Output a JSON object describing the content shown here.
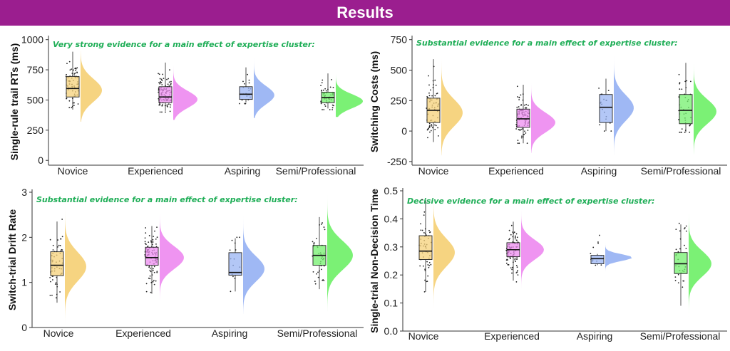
{
  "banner": {
    "title": "Results"
  },
  "colors": {
    "banner": "#9b1e8f",
    "evidence_text": "#1fae57",
    "novice": "#f5d27a",
    "experienced": "#ee8ef0",
    "aspiring": "#9ab4f3",
    "professional": "#74f06e"
  },
  "chart_data": [
    {
      "type": "raincloud",
      "annotation": "Very strong evidence for a main effect of expertise cluster:",
      "ylabel": "Single-rule trail RTs (ms)",
      "xlabel": "",
      "categories": [
        "Novice",
        "Experienced",
        "Aspiring",
        "Semi/Professional"
      ],
      "ylim": [
        -40,
        1010
      ],
      "yticks": [
        0,
        250,
        500,
        750,
        1000
      ],
      "ytick_labels": [
        "0",
        "250",
        "500",
        "750",
        "1000"
      ],
      "grid": false,
      "boxes": [
        {
          "min": 420,
          "q1": 525,
          "median": 595,
          "q3": 695,
          "max": 900
        },
        {
          "min": 410,
          "q1": 478,
          "median": 525,
          "q3": 610,
          "max": 810
        },
        {
          "min": 480,
          "q1": 505,
          "median": 548,
          "q3": 610,
          "max": 770
        },
        {
          "min": 430,
          "q1": 478,
          "median": 520,
          "q3": 565,
          "max": 720
        }
      ],
      "densities": [
        {
          "mode": 580,
          "sd": 95,
          "peak_width": 0.75,
          "range": [
            320,
            910
          ]
        },
        {
          "mode": 505,
          "sd": 70,
          "peak_width": 0.85,
          "range": [
            335,
            810
          ]
        },
        {
          "mode": 540,
          "sd": 75,
          "peak_width": 0.72,
          "range": [
            350,
            890
          ]
        },
        {
          "mode": 490,
          "sd": 58,
          "peak_width": 0.95,
          "range": [
            360,
            720
          ]
        }
      ],
      "points": [
        {
          "n": 70,
          "mean": 610,
          "sd": 105,
          "range": [
            400,
            910
          ]
        },
        {
          "n": 110,
          "mean": 545,
          "sd": 85,
          "range": [
            400,
            820
          ]
        },
        {
          "n": 22,
          "mean": 570,
          "sd": 75,
          "range": [
            470,
            780
          ]
        },
        {
          "n": 45,
          "mean": 525,
          "sd": 65,
          "range": [
            420,
            740
          ]
        }
      ]
    },
    {
      "type": "raincloud",
      "annotation": "Substantial evidence for a main effect of expertise cluster:",
      "ylabel": "Switching Costs (ms)",
      "xlabel": "",
      "categories": [
        "Novice",
        "Experienced",
        "Aspiring",
        "Semi/Professional"
      ],
      "ylim": [
        -280,
        760
      ],
      "yticks": [
        -250,
        0,
        250,
        500,
        750
      ],
      "ytick_labels": [
        "-250",
        "0",
        "250",
        "500",
        "750"
      ],
      "grid": false,
      "boxes": [
        {
          "min": -90,
          "q1": 70,
          "median": 170,
          "q3": 270,
          "max": 590
        },
        {
          "min": -100,
          "q1": 30,
          "median": 100,
          "q3": 180,
          "max": 380
        },
        {
          "min": 0,
          "q1": 70,
          "median": 195,
          "q3": 300,
          "max": 430
        },
        {
          "min": -10,
          "q1": 60,
          "median": 170,
          "q3": 300,
          "max": 560
        }
      ],
      "densities": [
        {
          "mode": 150,
          "sd": 110,
          "peak_width": 0.75,
          "range": [
            -200,
            700
          ]
        },
        {
          "mode": 70,
          "sd": 80,
          "peak_width": 0.85,
          "range": [
            -180,
            560
          ]
        },
        {
          "mode": 190,
          "sd": 105,
          "peak_width": 0.7,
          "range": [
            -200,
            760
          ]
        },
        {
          "mode": 160,
          "sd": 100,
          "peak_width": 0.8,
          "range": [
            -190,
            760
          ]
        }
      ],
      "points": [
        {
          "n": 65,
          "mean": 185,
          "sd": 120,
          "range": [
            -90,
            600
          ]
        },
        {
          "n": 100,
          "mean": 110,
          "sd": 100,
          "range": [
            -100,
            600
          ]
        },
        {
          "n": 18,
          "mean": 190,
          "sd": 110,
          "range": [
            0,
            430
          ]
        },
        {
          "n": 40,
          "mean": 190,
          "sd": 140,
          "range": [
            -10,
            660
          ]
        }
      ]
    },
    {
      "type": "raincloud",
      "annotation": "Substantial evidence for a main effect of expertise cluster:",
      "ylabel": "Switch-trial Drift Rate",
      "xlabel": "",
      "categories": [
        "Novice",
        "Experienced",
        "Aspiring",
        "Semi/Professional"
      ],
      "ylim": [
        0,
        3
      ],
      "yticks": [
        0,
        1,
        2,
        3
      ],
      "ytick_labels": [
        "0",
        "1",
        "2",
        "3"
      ],
      "grid": false,
      "boxes": [
        {
          "min": 0.55,
          "q1": 1.15,
          "median": 1.38,
          "q3": 1.68,
          "max": 2.35
        },
        {
          "min": 0.75,
          "q1": 1.38,
          "median": 1.55,
          "q3": 1.78,
          "max": 2.25
        },
        {
          "min": 0.8,
          "q1": 1.16,
          "median": 1.22,
          "q3": 1.66,
          "max": 1.98
        },
        {
          "min": 0.85,
          "q1": 1.38,
          "median": 1.6,
          "q3": 1.82,
          "max": 2.45
        }
      ],
      "densities": [
        {
          "mode": 1.35,
          "sd": 0.32,
          "peak_width": 0.75,
          "range": [
            0.05,
            2.85
          ]
        },
        {
          "mode": 1.55,
          "sd": 0.25,
          "peak_width": 0.85,
          "range": [
            0.3,
            2.7
          ]
        },
        {
          "mode": 1.3,
          "sd": 0.28,
          "peak_width": 0.75,
          "range": [
            0.3,
            2.5
          ]
        },
        {
          "mode": 1.6,
          "sd": 0.32,
          "peak_width": 0.9,
          "range": [
            0.35,
            3.0
          ]
        }
      ],
      "points": [
        {
          "n": 55,
          "mean": 1.4,
          "sd": 0.4,
          "range": [
            0.5,
            2.4
          ]
        },
        {
          "n": 95,
          "mean": 1.57,
          "sd": 0.3,
          "range": [
            0.4,
            2.3
          ]
        },
        {
          "n": 14,
          "mean": 1.35,
          "sd": 0.35,
          "range": [
            0.8,
            2.0
          ]
        },
        {
          "n": 38,
          "mean": 1.6,
          "sd": 0.4,
          "range": [
            0.8,
            2.9
          ]
        }
      ]
    },
    {
      "type": "raincloud",
      "annotation": "Decisive evidence for a main effect of expertise cluster:",
      "ylabel": "Single-trial Non-Decision Time",
      "xlabel": "",
      "categories": [
        "Novice",
        "Experienced",
        "Aspiring",
        "Semi/Professional"
      ],
      "ylim": [
        0,
        0.5
      ],
      "yticks": [
        0,
        0.1,
        0.2,
        0.3,
        0.4,
        0.5
      ],
      "ytick_labels": [
        "0.0",
        "0.1",
        "0.2",
        "0.3",
        "0.4",
        "0.5"
      ],
      "grid": false,
      "boxes": [
        {
          "min": 0.14,
          "q1": 0.255,
          "median": 0.285,
          "q3": 0.34,
          "max": 0.465
        },
        {
          "min": 0.18,
          "q1": 0.265,
          "median": 0.29,
          "q3": 0.315,
          "max": 0.39
        },
        {
          "min": 0.235,
          "q1": 0.24,
          "median": 0.258,
          "q3": 0.27,
          "max": 0.275
        },
        {
          "min": 0.09,
          "q1": 0.205,
          "median": 0.24,
          "q3": 0.28,
          "max": 0.38
        }
      ],
      "densities": [
        {
          "mode": 0.28,
          "sd": 0.05,
          "peak_width": 0.75,
          "range": [
            0.08,
            0.5
          ]
        },
        {
          "mode": 0.29,
          "sd": 0.035,
          "peak_width": 0.8,
          "range": [
            0.01,
            0.48
          ]
        },
        {
          "mode": 0.262,
          "sd": 0.012,
          "peak_width": 0.95,
          "range": [
            0.0,
            0.41
          ]
        },
        {
          "mode": 0.24,
          "sd": 0.045,
          "peak_width": 0.8,
          "range": [
            0.02,
            0.48
          ]
        }
      ],
      "points": [
        {
          "n": 50,
          "mean": 0.29,
          "sd": 0.065,
          "range": [
            0.14,
            0.47
          ]
        },
        {
          "n": 90,
          "mean": 0.29,
          "sd": 0.04,
          "range": [
            0.05,
            0.43
          ]
        },
        {
          "n": 12,
          "mean": 0.26,
          "sd": 0.04,
          "range": [
            0.17,
            0.38
          ]
        },
        {
          "n": 32,
          "mean": 0.25,
          "sd": 0.06,
          "range": [
            0.09,
            0.41
          ]
        }
      ]
    }
  ]
}
